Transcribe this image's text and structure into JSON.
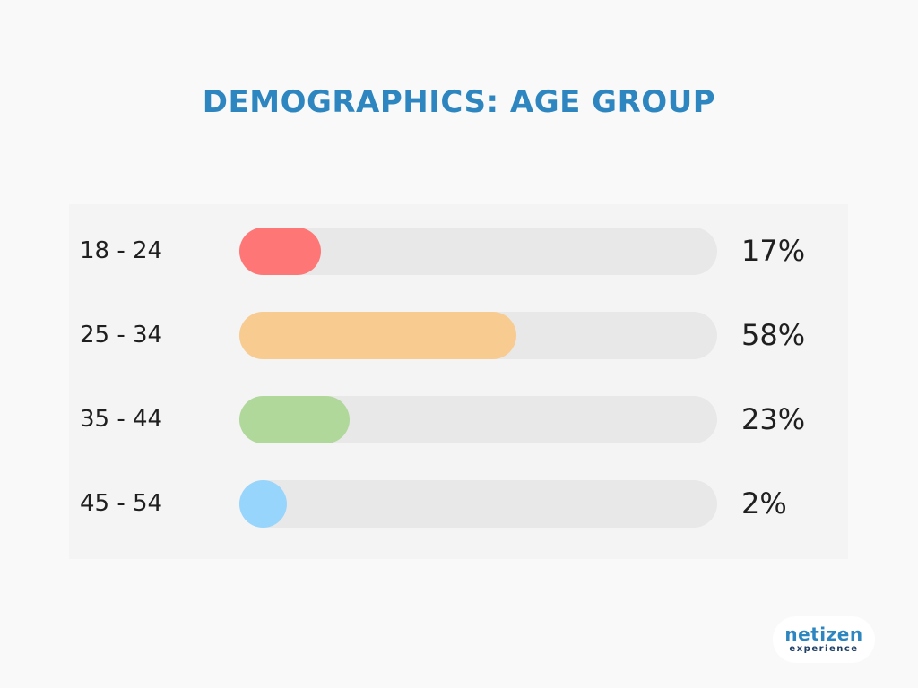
{
  "chart_data": {
    "type": "bar",
    "orientation": "horizontal",
    "title": "DEMOGRAPHICS: AGE GROUP",
    "categories": [
      "18 - 24",
      "25 - 34",
      "35 - 44",
      "45 - 54"
    ],
    "values": [
      17,
      58,
      23,
      2
    ],
    "value_labels": [
      "17%",
      "58%",
      "23%",
      "2%"
    ],
    "xlim": [
      0,
      100
    ],
    "unit": "%",
    "colors": [
      "#ff7676",
      "#f8cb91",
      "#b0d89b",
      "#98d5fc"
    ],
    "track_color": "#e8e8e8",
    "grid": false,
    "legend": "none"
  },
  "logo": {
    "text": "netizen experience"
  },
  "colors": {
    "title": "#2e86c1",
    "background": "#f9f9f9",
    "panel": "#f4f4f4",
    "text": "#1f1f1f"
  }
}
